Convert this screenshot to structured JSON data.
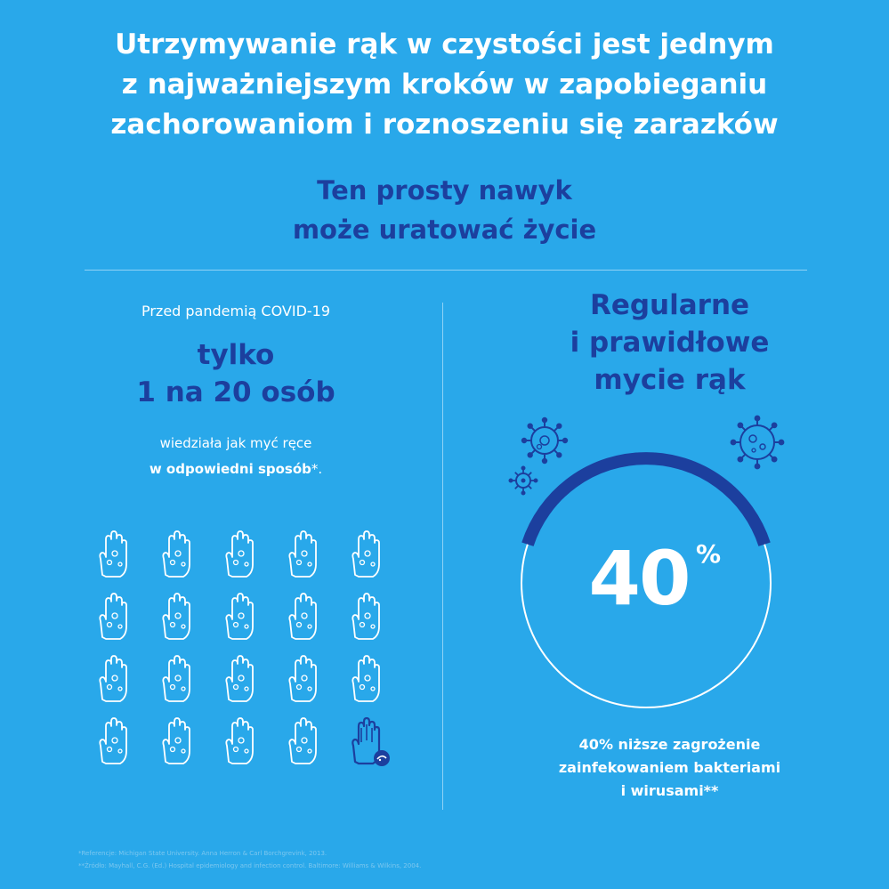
{
  "headline": {
    "lines": [
      "Utrzymywanie rąk w czystości jest jednym",
      "z najważniejszym kroków w zapobieganiu",
      "zachorowaniom i roznoszeniu się zarazków"
    ]
  },
  "subhead": {
    "lines": [
      "Ten prosty nawyk",
      "może uratować życie"
    ]
  },
  "left": {
    "pretext": "Przed pandemią COVID-19",
    "big_lines": [
      "tylko",
      "1 na 20 osób"
    ],
    "desc_line1": "wiedziała jak myć ręce",
    "desc_strong": "w odpowiedni sposób",
    "desc_suffix": "*.",
    "hands_total": 20,
    "hands_highlighted": 1
  },
  "right": {
    "title_lines": [
      "Regularne",
      "i prawidłowe",
      "mycie rąk"
    ],
    "stat_value": "40",
    "stat_unit": "%",
    "stat_fraction": 0.4,
    "note_lines": [
      "40% niższe zagrożenie",
      "zainfekowaniem bakteriami",
      "i wirusami**"
    ]
  },
  "footnotes": [
    "*Referencje: Michigan State University. Anna Herron & Carl Borchgrevink, 2013.",
    "**Źródło: Mayhall, C.G. (Ed.) Hospital epidemiology and infection control. Baltimore: Williams & Wilkins, 2004."
  ],
  "colors": {
    "background": "#29a8ea",
    "dark_blue": "#1c3f9e",
    "white": "#ffffff",
    "light_line": "#8fd2f6"
  },
  "icons": {
    "hand": "hand-icon",
    "highlighted_hand": "hand-icon-highlighted",
    "virus": "virus-icon"
  }
}
